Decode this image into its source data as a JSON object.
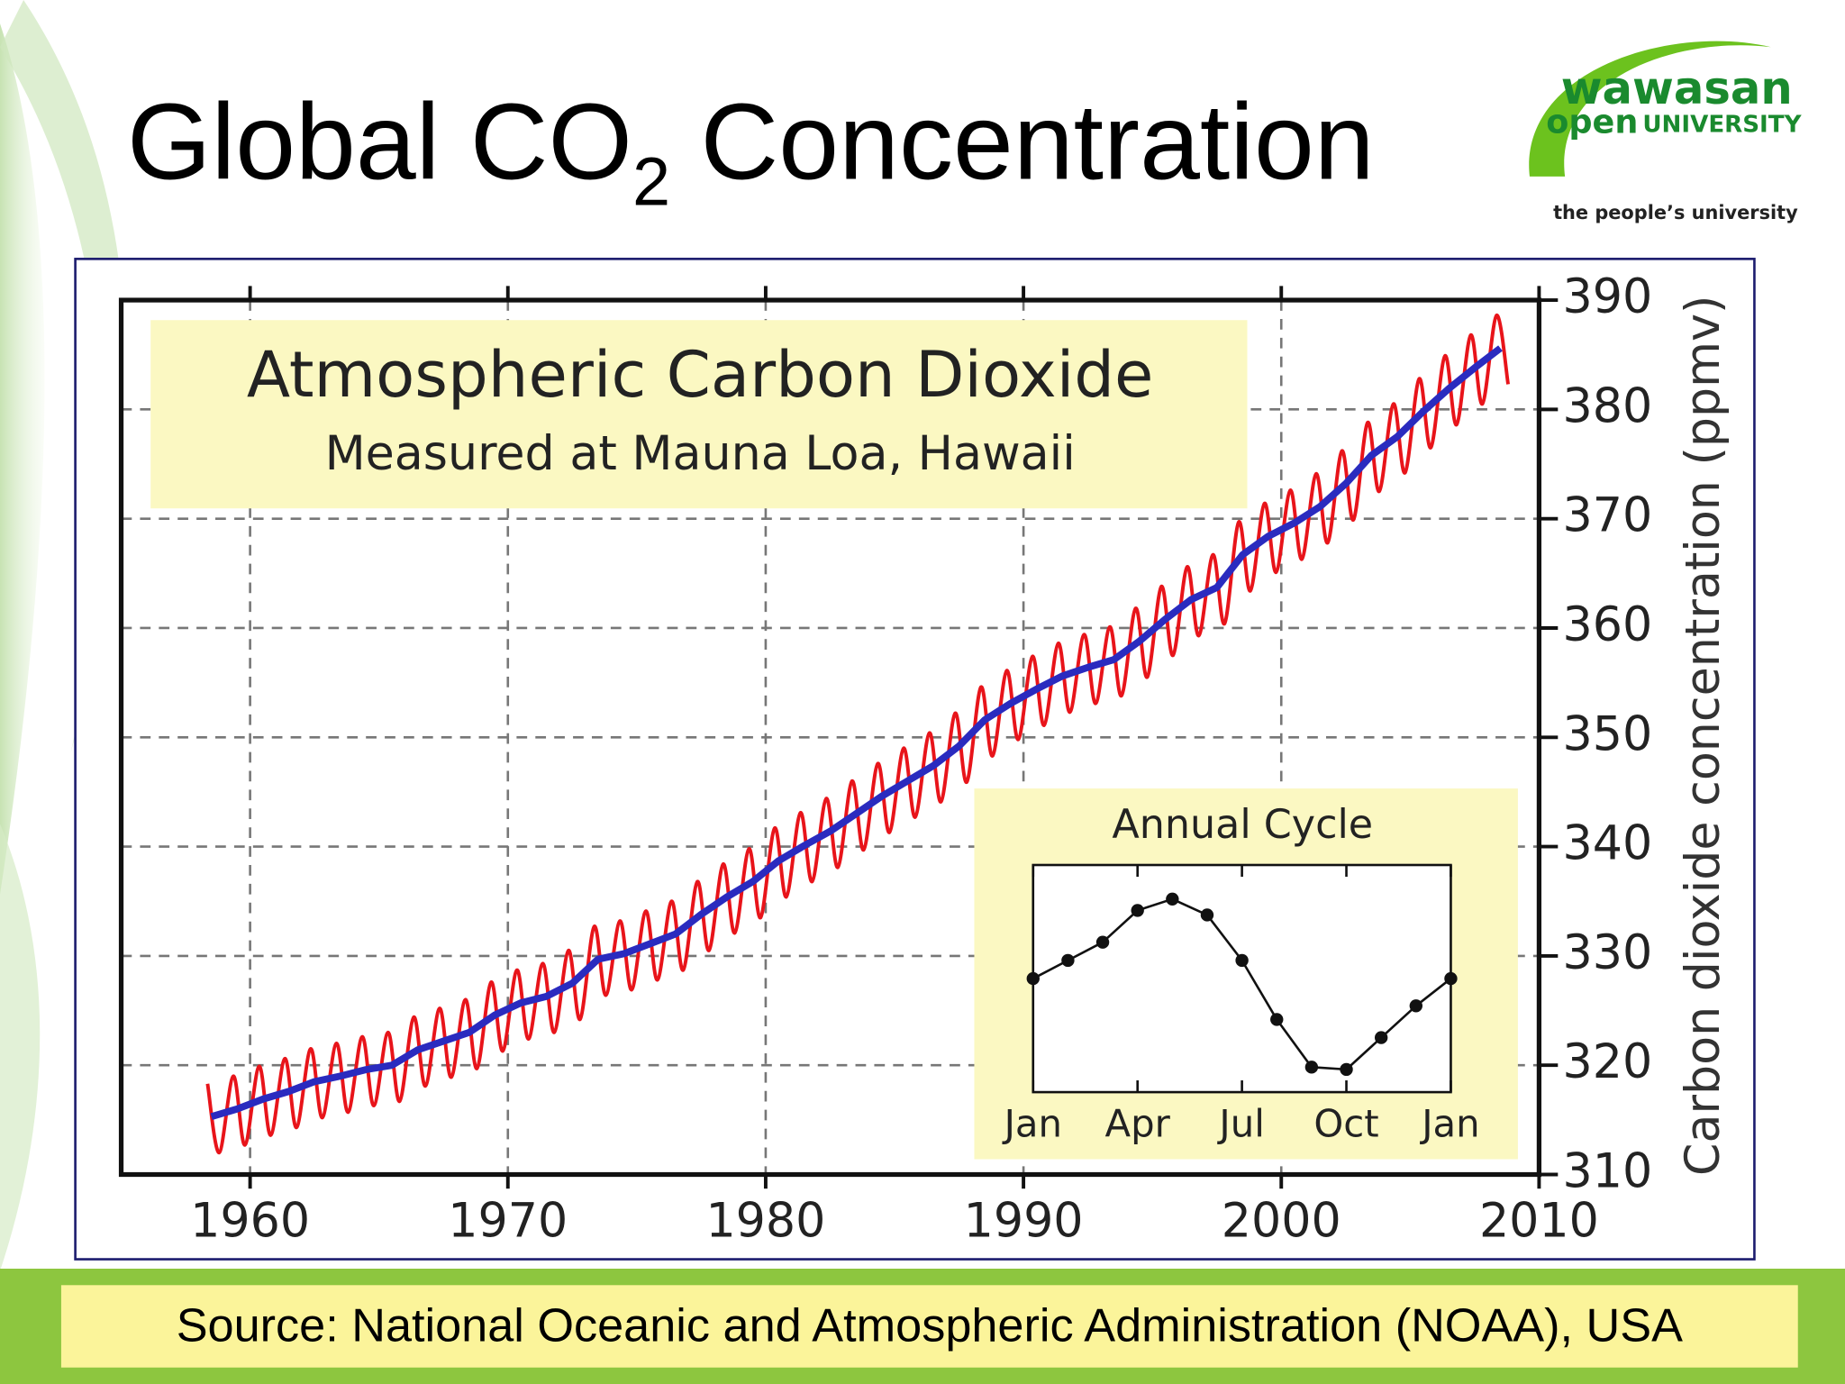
{
  "slide": {
    "title": [
      "Global CO",
      "2",
      " Concentration"
    ],
    "logo": {
      "line1": "wawasan",
      "line2a": "open",
      "line2b": "UNIVERSITY",
      "tagline": "the people’s university"
    },
    "source": "Source: National Oceanic and Atmospheric Administration (NOAA), USA"
  },
  "chart_data": [
    {
      "type": "line",
      "title": "Atmospheric Carbon Dioxide",
      "subtitle": "Measured at Mauna Loa, Hawaii",
      "ylabel": "Carbon dioxide concentration (ppmv)",
      "xlim": [
        1955,
        2010
      ],
      "xticks": [
        1960,
        1970,
        1980,
        1990,
        2000,
        2010
      ],
      "ylim": [
        310,
        390
      ],
      "yticks": [
        310,
        320,
        330,
        340,
        350,
        360,
        370,
        380,
        390
      ],
      "grid": true,
      "y_axis_side": "right",
      "series": [
        {
          "color": "#e8141a",
          "x": [
            1958.35,
            1958.8,
            1959.35,
            1959.8,
            1960.35,
            1960.8,
            1961.35,
            1961.8,
            1962.35,
            1962.8,
            1963.35,
            1963.8,
            1964.35,
            1964.8,
            1965.35,
            1965.8,
            1966.35,
            1966.8,
            1967.35,
            1967.8,
            1968.35,
            1968.8,
            1969.35,
            1969.8,
            1970.35,
            1970.8,
            1971.35,
            1971.8,
            1972.35,
            1972.8,
            1973.35,
            1973.8,
            1974.35,
            1974.8,
            1975.35,
            1975.8,
            1976.35,
            1976.8,
            1977.35,
            1977.8,
            1978.35,
            1978.8,
            1979.35,
            1979.8,
            1980.35,
            1980.8,
            1981.35,
            1981.8,
            1982.35,
            1982.8,
            1983.35,
            1983.8,
            1984.35,
            1984.8,
            1985.35,
            1985.8,
            1986.35,
            1986.8,
            1987.35,
            1987.8,
            1988.35,
            1988.8,
            1989.35,
            1989.8,
            1990.35,
            1990.8,
            1991.35,
            1991.8,
            1992.35,
            1992.8,
            1993.35,
            1993.8,
            1994.35,
            1994.8,
            1995.35,
            1995.8,
            1996.35,
            1996.8,
            1997.35,
            1997.8,
            1998.35,
            1998.8,
            1999.35,
            1999.8,
            2000.35,
            2000.8,
            2001.35,
            2001.8,
            2002.35,
            2002.8,
            2003.35,
            2003.8,
            2004.35,
            2004.8,
            2005.35,
            2005.8,
            2006.35,
            2006.8,
            2007.35,
            2007.8,
            2008.35,
            2008.8
          ],
          "values": [
            318.3,
            312.0,
            319.0,
            312.7,
            319.9,
            313.6,
            320.6,
            314.3,
            321.5,
            315.2,
            322.0,
            315.7,
            322.6,
            316.3,
            323.0,
            316.7,
            324.4,
            318.1,
            325.2,
            318.9,
            326.0,
            319.7,
            327.6,
            321.3,
            328.7,
            322.4,
            329.3,
            323.0,
            330.5,
            324.2,
            332.7,
            326.4,
            333.2,
            326.9,
            334.1,
            327.8,
            335.0,
            328.7,
            336.8,
            330.5,
            338.4,
            332.1,
            339.8,
            333.5,
            341.7,
            335.4,
            343.1,
            336.8,
            344.4,
            338.1,
            346.0,
            339.7,
            347.6,
            341.3,
            349.0,
            342.7,
            350.4,
            344.1,
            352.2,
            345.9,
            354.6,
            348.3,
            356.1,
            349.8,
            357.4,
            351.1,
            358.6,
            352.3,
            359.4,
            353.1,
            360.1,
            353.8,
            361.8,
            355.5,
            363.8,
            357.5,
            365.6,
            359.3,
            366.7,
            360.4,
            369.7,
            363.4,
            371.4,
            365.1,
            372.6,
            366.3,
            374.1,
            367.8,
            376.2,
            369.9,
            378.8,
            372.5,
            380.5,
            374.2,
            382.8,
            376.5,
            384.9,
            378.6,
            386.8,
            380.5,
            388.6,
            382.3
          ]
        },
        {
          "color": "#2a2bbf",
          "x": [
            1958.5,
            1959.5,
            1960.5,
            1961.5,
            1962.5,
            1963.5,
            1964.5,
            1965.5,
            1966.5,
            1967.5,
            1968.5,
            1969.5,
            1970.5,
            1971.5,
            1972.5,
            1973.5,
            1974.5,
            1975.5,
            1976.5,
            1977.5,
            1978.5,
            1979.5,
            1980.5,
            1981.5,
            1982.5,
            1983.5,
            1984.5,
            1985.5,
            1986.5,
            1987.5,
            1988.5,
            1989.5,
            1990.5,
            1991.5,
            1992.5,
            1993.5,
            1994.5,
            1995.5,
            1996.5,
            1997.5,
            1998.5,
            1999.5,
            2000.5,
            2001.5,
            2002.5,
            2003.5,
            2004.5,
            2005.5,
            2006.5,
            2007.5,
            2008.5
          ],
          "values": [
            315.3,
            316.0,
            316.9,
            317.6,
            318.5,
            319.0,
            319.6,
            320.0,
            321.4,
            322.2,
            323.0,
            324.6,
            325.7,
            326.3,
            327.5,
            329.7,
            330.2,
            331.1,
            332.0,
            333.8,
            335.4,
            336.8,
            338.7,
            340.1,
            341.4,
            343.0,
            344.6,
            346.0,
            347.4,
            349.2,
            351.6,
            353.1,
            354.4,
            355.6,
            356.4,
            357.1,
            358.8,
            360.8,
            362.6,
            363.7,
            366.7,
            368.4,
            369.6,
            371.1,
            373.2,
            375.8,
            377.5,
            379.8,
            381.9,
            383.8,
            385.6
          ]
        }
      ]
    },
    {
      "type": "line",
      "title": "Annual Cycle",
      "markers": true,
      "xlim": [
        0,
        12
      ],
      "xticks": [
        {
          "value": 0,
          "label": "Jan"
        },
        {
          "value": 3,
          "label": "Apr"
        },
        {
          "value": 6,
          "label": "Jul"
        },
        {
          "value": 9,
          "label": "Oct"
        },
        {
          "value": 12,
          "label": "Jan"
        }
      ],
      "ylim": [
        -5,
        5
      ],
      "series": [
        {
          "color": "#111111",
          "x": [
            0,
            1,
            2,
            3,
            4,
            5,
            6,
            7,
            8,
            9,
            10,
            11,
            12
          ],
          "values": [
            0.0,
            0.8,
            1.6,
            3.0,
            3.5,
            2.8,
            0.8,
            -1.8,
            -3.9,
            -4.0,
            -2.6,
            -1.2,
            0.0
          ]
        }
      ]
    }
  ]
}
